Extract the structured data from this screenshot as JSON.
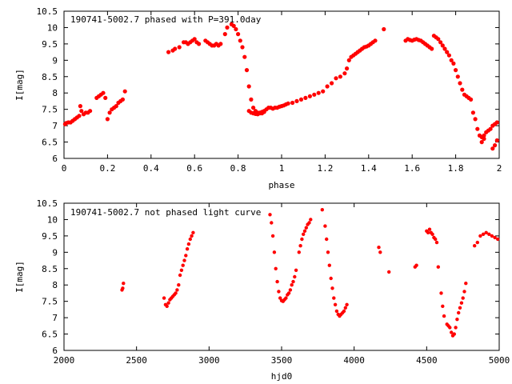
{
  "chart_data": [
    {
      "type": "scatter",
      "title": "190741-5002.7 phased with P=391.0day",
      "xlabel": "phase",
      "ylabel": "I[mag]",
      "xlim": [
        0,
        2
      ],
      "ylim": [
        10.5,
        6
      ],
      "y_inverted": true,
      "x_ticks": [
        0,
        0.2,
        0.4,
        0.6,
        0.8,
        1,
        1.2,
        1.4,
        1.6,
        1.8,
        2
      ],
      "x_tick_labels": [
        "0",
        "0.2",
        "0.4",
        "0.6",
        "0.8",
        "1",
        "1.2",
        "1.4",
        "1.6",
        "1.8",
        "2"
      ],
      "y_ticks": [
        6,
        6.5,
        7,
        7.5,
        8,
        8.5,
        9,
        9.5,
        10,
        10.5
      ],
      "y_tick_labels": [
        "6",
        "6.5",
        "7",
        "7.5",
        "8",
        "8.5",
        "9",
        "9.5",
        "10",
        "10.5"
      ],
      "grid": false,
      "marker_color": "#ff0000",
      "series": [
        {
          "x": [
            0.005,
            0.01,
            0.02,
            0.03,
            0.04,
            0.05,
            0.06,
            0.07,
            0.075,
            0.08,
            0.09,
            0.1,
            0.11,
            0.12,
            0.15,
            0.16,
            0.17,
            0.18,
            0.19,
            0.2,
            0.21,
            0.22,
            0.23,
            0.24,
            0.25,
            0.26,
            0.27,
            0.28,
            0.48,
            0.5,
            0.51,
            0.53,
            0.55,
            0.56,
            0.57,
            0.58,
            0.59,
            0.6,
            0.61,
            0.62,
            0.65,
            0.66,
            0.67,
            0.68,
            0.69,
            0.7,
            0.71,
            0.72,
            0.74,
            0.75,
            0.77,
            0.78,
            0.79,
            0.8,
            0.81,
            0.82,
            0.83,
            0.84,
            0.85,
            0.86,
            0.87,
            0.88,
            0.89,
            0.9,
            0.91,
            0.92,
            0.93,
            0.94,
            0.95,
            0.96,
            0.97,
            0.98,
            0.99,
            1.0,
            1.01,
            1.02,
            1.03,
            1.05,
            1.07,
            1.09,
            1.11,
            1.13,
            1.15,
            1.17,
            1.19,
            1.21,
            1.23,
            1.25,
            1.27,
            1.29,
            1.3,
            1.31,
            1.32,
            1.33,
            1.34,
            1.35,
            1.36,
            1.37,
            1.38,
            1.39,
            1.4,
            1.41,
            1.42,
            1.43,
            1.47,
            0.85,
            0.86,
            0.87,
            0.88,
            0.89,
            0.9,
            0.91,
            0.92,
            1.57,
            1.58,
            1.59,
            1.6,
            1.61,
            1.62,
            1.63,
            1.64,
            1.65,
            1.66,
            1.67,
            1.68,
            1.69,
            1.7,
            1.71,
            1.72,
            1.73,
            1.74,
            1.75,
            1.76,
            1.77,
            1.78,
            1.79,
            1.8,
            1.81,
            1.82,
            1.83,
            1.84,
            1.85,
            1.86,
            1.87,
            1.88,
            1.89,
            1.9,
            1.91,
            1.92,
            1.93,
            1.94,
            1.95,
            1.96,
            1.97,
            1.98,
            1.99,
            1.92,
            1.93,
            1.97,
            1.98,
            1.99
          ],
          "y": [
            7.05,
            7.08,
            7.1,
            7.1,
            7.15,
            7.2,
            7.25,
            7.3,
            7.6,
            7.45,
            7.35,
            7.4,
            7.4,
            7.45,
            7.85,
            7.9,
            7.95,
            8.0,
            7.85,
            7.2,
            7.4,
            7.5,
            7.55,
            7.6,
            7.7,
            7.75,
            7.8,
            8.05,
            9.25,
            9.3,
            9.35,
            9.4,
            9.55,
            9.55,
            9.5,
            9.55,
            9.6,
            9.65,
            9.55,
            9.5,
            9.6,
            9.55,
            9.5,
            9.45,
            9.45,
            9.5,
            9.45,
            9.5,
            9.8,
            10.0,
            10.1,
            10.05,
            9.95,
            9.8,
            9.6,
            9.4,
            9.1,
            8.7,
            8.2,
            7.8,
            7.55,
            7.45,
            7.4,
            7.4,
            7.42,
            7.45,
            7.5,
            7.55,
            7.55,
            7.52,
            7.55,
            7.55,
            7.58,
            7.6,
            7.62,
            7.65,
            7.68,
            7.7,
            7.75,
            7.8,
            7.85,
            7.9,
            7.95,
            8.0,
            8.05,
            8.2,
            8.3,
            8.45,
            8.5,
            8.6,
            8.75,
            9.0,
            9.1,
            9.15,
            9.2,
            9.25,
            9.3,
            9.35,
            9.4,
            9.42,
            9.45,
            9.5,
            9.55,
            9.6,
            9.95,
            7.45,
            7.4,
            7.38,
            7.36,
            7.35,
            7.38,
            7.38,
            7.42,
            9.6,
            9.65,
            9.62,
            9.6,
            9.63,
            9.65,
            9.62,
            9.6,
            9.55,
            9.5,
            9.45,
            9.4,
            9.35,
            9.75,
            9.7,
            9.65,
            9.55,
            9.45,
            9.35,
            9.25,
            9.15,
            9.0,
            8.9,
            8.7,
            8.5,
            8.3,
            8.1,
            7.95,
            7.9,
            7.85,
            7.8,
            7.4,
            7.2,
            6.9,
            6.7,
            6.65,
            6.7,
            6.8,
            6.85,
            6.9,
            7.0,
            7.05,
            7.1,
            6.5,
            6.6,
            6.3,
            6.4,
            6.55
          ]
        }
      ]
    },
    {
      "type": "scatter",
      "title": "190741-5002.7 not phased light curve",
      "xlabel": "hjd0",
      "ylabel": "I[mag]",
      "xlim": [
        2000,
        5000
      ],
      "ylim": [
        10.5,
        6
      ],
      "y_inverted": true,
      "x_ticks": [
        2000,
        2500,
        3000,
        3500,
        4000,
        4500,
        5000
      ],
      "x_tick_labels": [
        "2000",
        "2500",
        "3000",
        "3500",
        "4000",
        "4500",
        "5000"
      ],
      "y_ticks": [
        6,
        6.5,
        7,
        7.5,
        8,
        8.5,
        9,
        9.5,
        10,
        10.5
      ],
      "y_tick_labels": [
        "6",
        "6.5",
        "7",
        "7.5",
        "8",
        "8.5",
        "9",
        "9.5",
        "10",
        "10.5"
      ],
      "grid": false,
      "marker_color": "#ff0000",
      "series": [
        {
          "x": [
            2400,
            2405,
            2410,
            2690,
            2700,
            2710,
            2720,
            2730,
            2740,
            2750,
            2760,
            2770,
            2780,
            2790,
            2800,
            2810,
            2820,
            2830,
            2840,
            2850,
            2860,
            2870,
            2880,
            2890,
            3420,
            3430,
            3440,
            3450,
            3460,
            3470,
            3480,
            3490,
            3500,
            3510,
            3520,
            3530,
            3540,
            3550,
            3560,
            3570,
            3580,
            3590,
            3600,
            3620,
            3630,
            3640,
            3650,
            3660,
            3670,
            3680,
            3690,
            3700,
            3780,
            3800,
            3810,
            3820,
            3830,
            3840,
            3850,
            3860,
            3870,
            3880,
            3890,
            3900,
            3910,
            3920,
            3930,
            3940,
            3950,
            4170,
            4180,
            4240,
            4420,
            4430,
            4500,
            4510,
            4520,
            4530,
            4540,
            4550,
            4560,
            4570,
            4580,
            4600,
            4610,
            4620,
            4640,
            4650,
            4660,
            4670,
            4680,
            4690,
            4700,
            4710,
            4720,
            4730,
            4740,
            4750,
            4760,
            4770,
            4830,
            4850,
            4870,
            4890,
            4910,
            4930,
            4950,
            4970,
            4990
          ],
          "y": [
            7.85,
            7.9,
            8.05,
            7.6,
            7.4,
            7.35,
            7.45,
            7.55,
            7.6,
            7.65,
            7.7,
            7.75,
            7.85,
            8.0,
            8.3,
            8.45,
            8.6,
            8.75,
            8.9,
            9.1,
            9.25,
            9.4,
            9.5,
            9.6,
            10.15,
            9.9,
            9.5,
            9.0,
            8.5,
            8.1,
            7.8,
            7.6,
            7.52,
            7.5,
            7.55,
            7.6,
            7.7,
            7.75,
            7.85,
            8.0,
            8.1,
            8.25,
            8.45,
            9.0,
            9.2,
            9.4,
            9.55,
            9.65,
            9.75,
            9.85,
            9.9,
            10.0,
            10.3,
            9.8,
            9.4,
            9.0,
            8.6,
            8.2,
            7.9,
            7.6,
            7.4,
            7.2,
            7.1,
            7.05,
            7.1,
            7.15,
            7.2,
            7.3,
            7.4,
            9.15,
            9.0,
            8.4,
            8.55,
            8.6,
            9.65,
            9.6,
            9.7,
            9.6,
            9.55,
            9.45,
            9.4,
            9.3,
            8.55,
            7.75,
            7.35,
            7.05,
            6.8,
            6.75,
            6.7,
            6.55,
            6.45,
            6.5,
            6.7,
            6.95,
            7.15,
            7.3,
            7.45,
            7.6,
            7.8,
            8.05,
            9.2,
            9.3,
            9.5,
            9.55,
            9.6,
            9.55,
            9.5,
            9.45,
            9.4
          ]
        }
      ]
    }
  ]
}
